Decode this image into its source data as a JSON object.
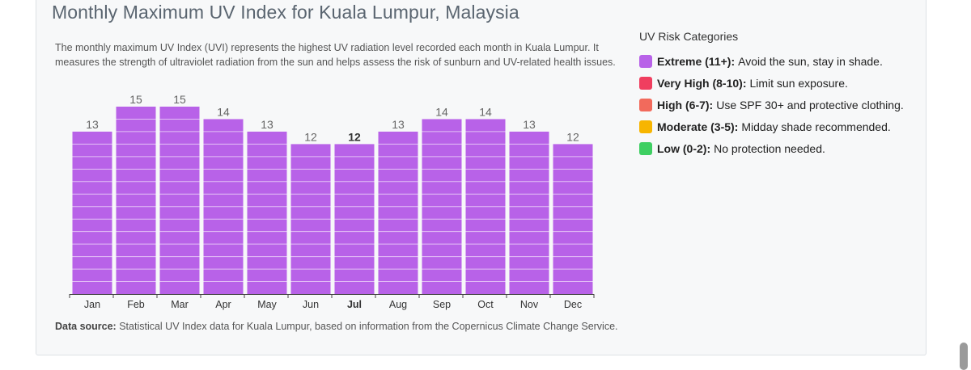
{
  "title": "Monthly Maximum UV Index for Kuala Lumpur, Malaysia",
  "description": "The monthly maximum UV Index (UVI) represents the highest UV radiation level recorded each month in Kuala Lumpur. It measures the strength of ultraviolet radiation from the sun and helps assess the risk of sunburn and UV-related health issues.",
  "source": {
    "label": "Data source:",
    "text": "Statistical UV Index data for Kuala Lumpur, based on information from the Copernicus Climate Change Service."
  },
  "legend": {
    "title": "UV Risk Categories",
    "items": [
      {
        "label": "Extreme (11+):",
        "text": "Avoid the sun, stay in shade.",
        "color": "#b862e8"
      },
      {
        "label": "Very High (8-10):",
        "text": "Limit sun exposure.",
        "color": "#f03e5f"
      },
      {
        "label": "High (6-7):",
        "text": "Use SPF 30+ and protective clothing.",
        "color": "#f26a5c"
      },
      {
        "label": "Moderate (3-5):",
        "text": "Midday shade recommended.",
        "color": "#f7b500"
      },
      {
        "label": "Low (0-2):",
        "text": "No protection needed.",
        "color": "#3ecf62"
      }
    ]
  },
  "chart_data": {
    "type": "bar",
    "title": "Monthly Maximum UV Index for Kuala Lumpur, Malaysia",
    "categories": [
      "Jan",
      "Feb",
      "Mar",
      "Apr",
      "May",
      "Jun",
      "Jul",
      "Aug",
      "Sep",
      "Oct",
      "Nov",
      "Dec"
    ],
    "values": [
      13,
      15,
      15,
      14,
      13,
      12,
      12,
      13,
      14,
      14,
      13,
      12
    ],
    "highlight": "Jul",
    "ylim": [
      0,
      15
    ],
    "xlabel": "",
    "ylabel": "",
    "bar_color": "#b862e8"
  }
}
